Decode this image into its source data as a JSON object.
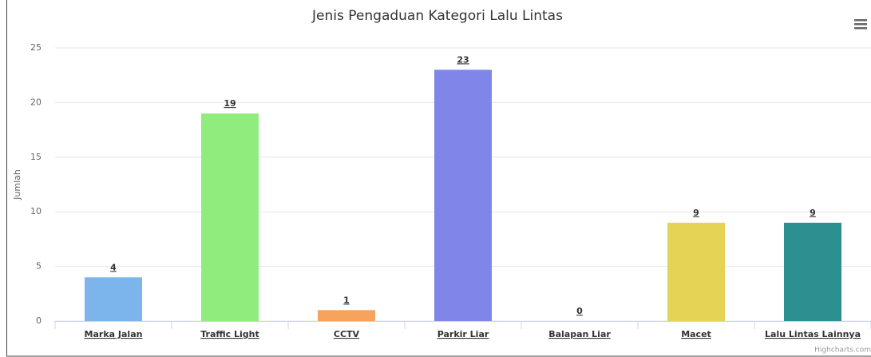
{
  "chart_data": {
    "type": "bar",
    "title": "Jenis Pengaduan Kategori Lalu Lintas",
    "y_axis_label": "Jumlah",
    "categories": [
      "Marka Jalan",
      "Traffic Light",
      "CCTV",
      "Parkir Liar",
      "Balapan Liar",
      "Macet",
      "Lalu Lintas Lainnya"
    ],
    "values": [
      4,
      19,
      1,
      23,
      0,
      9,
      9
    ],
    "colors": [
      "#7cb5ec",
      "#90ed7d",
      "#f7a35c",
      "#8085e9",
      "#f15c80",
      "#e4d354",
      "#2b908f"
    ],
    "ylim": [
      0,
      25
    ],
    "yticks": [
      0,
      5,
      10,
      15,
      20,
      25
    ],
    "grid": true,
    "credits": "Highcharts.com"
  }
}
